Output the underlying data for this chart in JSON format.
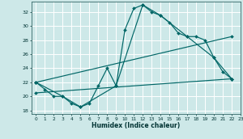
{
  "xlabel": "Humidex (Indice chaleur)",
  "bg_color": "#cde8e8",
  "grid_color": "#ffffff",
  "line_color": "#006666",
  "xlim": [
    -0.5,
    23
  ],
  "ylim": [
    17.5,
    33.5
  ],
  "xticks": [
    0,
    1,
    2,
    3,
    4,
    5,
    6,
    7,
    8,
    9,
    10,
    11,
    12,
    13,
    14,
    15,
    16,
    17,
    18,
    19,
    20,
    21,
    22,
    23
  ],
  "yticks": [
    18,
    20,
    22,
    24,
    26,
    28,
    30,
    32
  ],
  "series1_x": [
    0,
    1,
    2,
    3,
    4,
    5,
    6,
    7,
    8,
    9,
    10,
    11,
    12,
    13,
    14,
    15,
    16,
    17,
    18,
    19,
    20,
    21,
    22
  ],
  "series1_y": [
    22,
    21,
    20,
    20,
    19,
    18.5,
    19,
    21.5,
    24,
    21.5,
    29.5,
    32.5,
    33,
    32,
    31.5,
    30.5,
    29,
    28.5,
    28.5,
    28,
    25.5,
    23.5,
    22.5
  ],
  "series2_x": [
    0,
    3,
    5,
    9,
    12,
    14,
    17,
    20,
    22
  ],
  "series2_y": [
    22,
    20,
    18.5,
    21.5,
    33,
    31.5,
    28.5,
    25.5,
    22.5
  ],
  "series3_x": [
    0,
    22
  ],
  "series3_y": [
    22,
    28.5
  ],
  "series4_x": [
    0,
    22
  ],
  "series4_y": [
    20.5,
    22.5
  ]
}
